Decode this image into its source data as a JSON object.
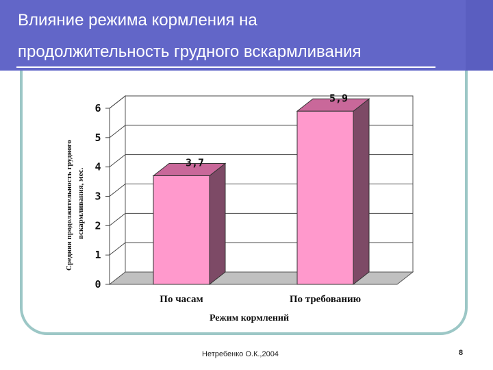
{
  "slide": {
    "title_line1": "Влияние режима кормления на",
    "title_line2": "продолжительность грудного вскармливания",
    "footer": "Нетребенко О.К.,2004",
    "page_number": "8"
  },
  "colors": {
    "title_bar": "#6266c8",
    "frame": "#9cc7c6",
    "bar_front": "#ff99cc",
    "bar_side": "#7d4a66",
    "bar_top": "#c9689a",
    "floor": "#c0c0c0"
  },
  "chart_data": {
    "type": "bar",
    "categories": [
      "По часам",
      "По требованию"
    ],
    "values": [
      3.7,
      5.9
    ],
    "data_labels": [
      "3,7",
      "5,9"
    ],
    "xlabel": "Режим кормлений",
    "ylabel_line1": "Средняя продолжительность грудного",
    "ylabel_line2": "вскармливания, мес.",
    "ylim": [
      0,
      6
    ],
    "yticks": [
      "0",
      "1",
      "2",
      "3",
      "4",
      "5",
      "6"
    ],
    "grid": true,
    "style": "3d"
  }
}
